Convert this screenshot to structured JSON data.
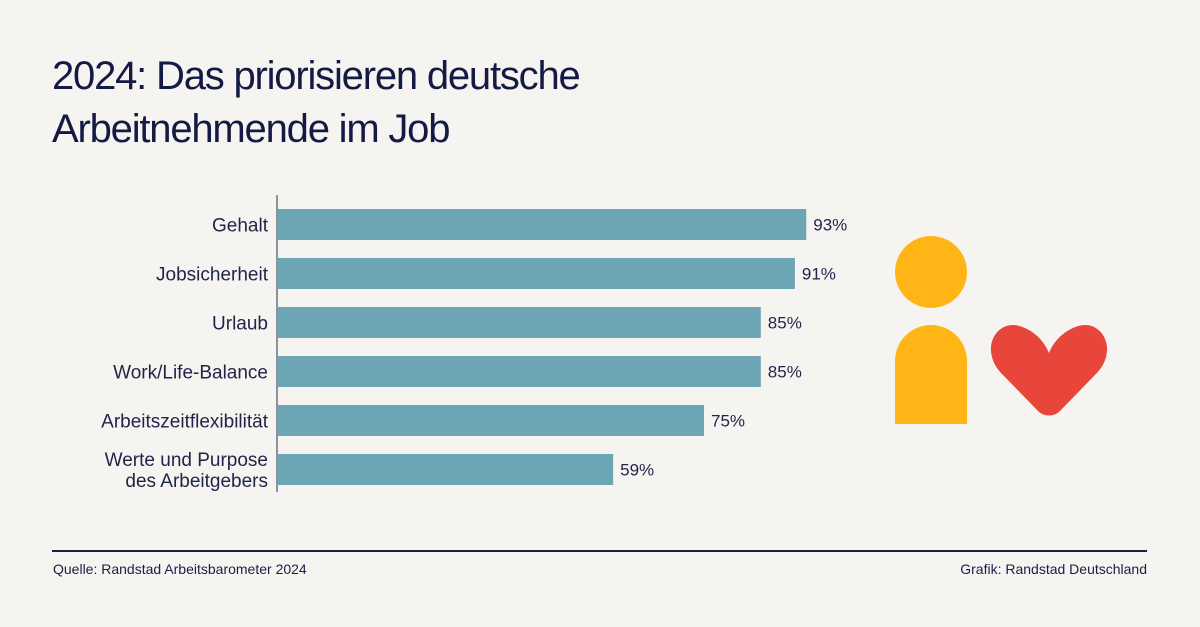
{
  "title_line1": "2024: Das priorisieren deutsche",
  "title_line2": "Arbeitnehmende im Job",
  "footer": {
    "source": "Quelle: Randstad Arbeitsbarometer 2024",
    "credit": "Grafik: Randstad Deutschland"
  },
  "colors": {
    "bar": "#6ca5b3",
    "text": "#1a1f45",
    "person": "#ffb515",
    "heart": "#e8463a",
    "background": "#f5f4f0"
  },
  "illustration": {
    "icons": [
      "person-icon",
      "heart-icon"
    ]
  },
  "chart_data": {
    "type": "bar",
    "orientation": "horizontal",
    "title": "2024: Das priorisieren deutsche Arbeitnehmende im Job",
    "categories": [
      [
        "Gehalt"
      ],
      [
        "Jobsicherheit"
      ],
      [
        "Urlaub"
      ],
      [
        "Work/Life-Balance"
      ],
      [
        "Arbeitszeitflexibilität"
      ],
      [
        "Werte und Purpose",
        "des Arbeitgebers"
      ]
    ],
    "values": [
      93,
      91,
      85,
      85,
      75,
      59
    ],
    "value_labels": [
      "93%",
      "91%",
      "85%",
      "85%",
      "75%",
      "59%"
    ],
    "unit": "%",
    "xlabel": "",
    "ylabel": "",
    "xlim": [
      0,
      100
    ],
    "grid": false,
    "legend": "none"
  }
}
